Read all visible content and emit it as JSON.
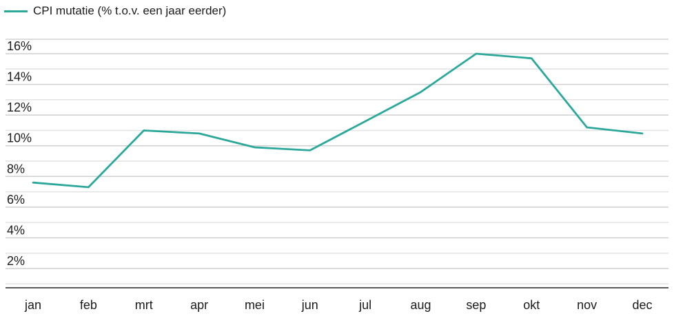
{
  "legend": {
    "label": "CPI mutatie (% t.o.v. een jaar eerder)"
  },
  "chart_data": {
    "type": "line",
    "categories": [
      "jan",
      "feb",
      "mrt",
      "apr",
      "mei",
      "jun",
      "jul",
      "aug",
      "sep",
      "okt",
      "nov",
      "dec"
    ],
    "series": [
      {
        "name": "CPI mutatie (% t.o.v. een jaar eerder)",
        "values": [
          7.6,
          7.3,
          11.0,
          10.8,
          9.9,
          9.7,
          11.6,
          13.5,
          16.0,
          15.7,
          11.2,
          10.8
        ],
        "color": "#2ba89a"
      }
    ],
    "yticks": [
      2,
      4,
      6,
      8,
      10,
      12,
      14,
      16
    ],
    "ytick_labels": [
      "2%",
      "4%",
      "6%",
      "8%",
      "10%",
      "12%",
      "14%",
      "16%"
    ],
    "ylim": [
      0,
      17
    ],
    "grid": true,
    "legend_position": "top-left"
  }
}
